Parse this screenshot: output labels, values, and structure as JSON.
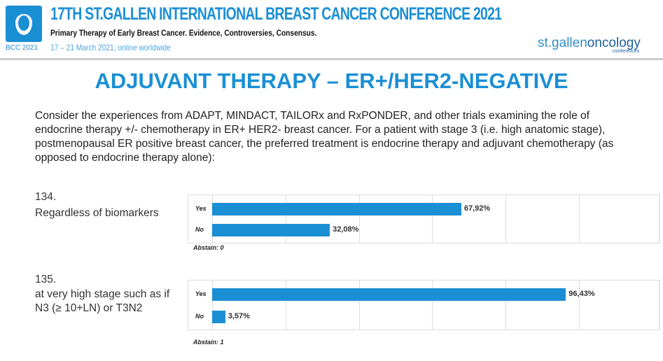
{
  "header": {
    "logo_label": "BCC 2021",
    "conference_title": "17TH ST.GALLEN INTERNATIONAL BREAST CANCER CONFERENCE 2021",
    "subtitle": "Primary Therapy of Early Breast Cancer. Evidence, Controversies, Consensus.",
    "date_line": "17 – 21 March 2021, online worldwide",
    "brand_prefix": "st.gallen",
    "brand_suffix": "oncology",
    "brand_sub": "conferences"
  },
  "slide_title": "ADJUVANT THERAPY – ER+/HER2-NEGATIVE",
  "question": "Consider the experiences from ADAPT, MINDACT, TAILORx and RxPONDER, and other trials examining the role of endocrine therapy +/- chemotherapy in ER+ HER2- breast cancer.  For a patient with stage 3 (i.e. high anatomic stage), postmenopausal ER positive breast cancer, the preferred treatment is endocrine therapy and adjuvant chemotherapy (as opposed to endocrine therapy alone):",
  "colors": {
    "accent": "#1b8fd4"
  },
  "chart_data": [
    {
      "type": "bar",
      "number": "134.",
      "title": "Regardless of biomarkers",
      "categories": [
        "Yes",
        "No"
      ],
      "values": [
        67.92,
        32.08
      ],
      "value_labels": [
        "67,92%",
        "32,08%"
      ],
      "xlim": [
        0,
        120
      ],
      "grid": true,
      "abstain": "Abstain: 0"
    },
    {
      "type": "bar",
      "number": "135.",
      "title": "at very high stage such as if N3 (≥ 10+LN) or T3N2",
      "categories": [
        "Yes",
        "No"
      ],
      "values": [
        96.43,
        3.57
      ],
      "value_labels": [
        "96,43%",
        "3,57%"
      ],
      "xlim": [
        0,
        120
      ],
      "grid": true,
      "abstain": "Abstain: 1"
    }
  ]
}
